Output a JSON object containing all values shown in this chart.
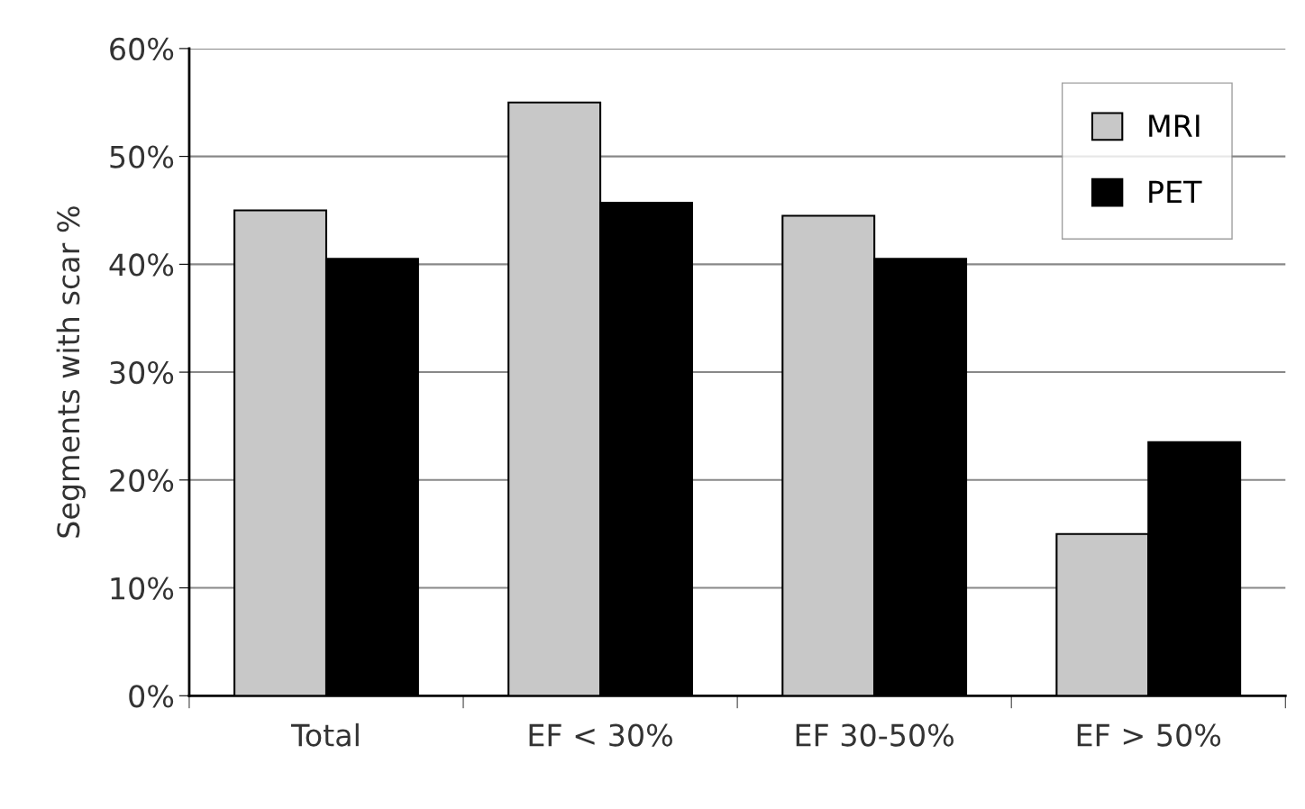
{
  "chart_data": {
    "type": "bar",
    "ylabel": "Segments with scar %",
    "categories": [
      "Total",
      "EF < 30%",
      "EF 30-50%",
      "EF > 50%"
    ],
    "series": [
      {
        "name": "MRI",
        "color": "#c8c8c8",
        "values": [
          45,
          55,
          44.5,
          15
        ]
      },
      {
        "name": "PET",
        "color": "#000000",
        "values": [
          40.5,
          45.7,
          40.5,
          23.5
        ]
      }
    ],
    "ylim": [
      0,
      60
    ],
    "yticks": [
      {
        "value": 0,
        "label": "0%"
      },
      {
        "value": 10,
        "label": "10%"
      },
      {
        "value": 20,
        "label": "20%"
      },
      {
        "value": 30,
        "label": "30%"
      },
      {
        "value": 40,
        "label": "40%"
      },
      {
        "value": 50,
        "label": "50%"
      },
      {
        "value": 60,
        "label": "60%"
      }
    ],
    "grid": "y",
    "legend": "top right"
  }
}
